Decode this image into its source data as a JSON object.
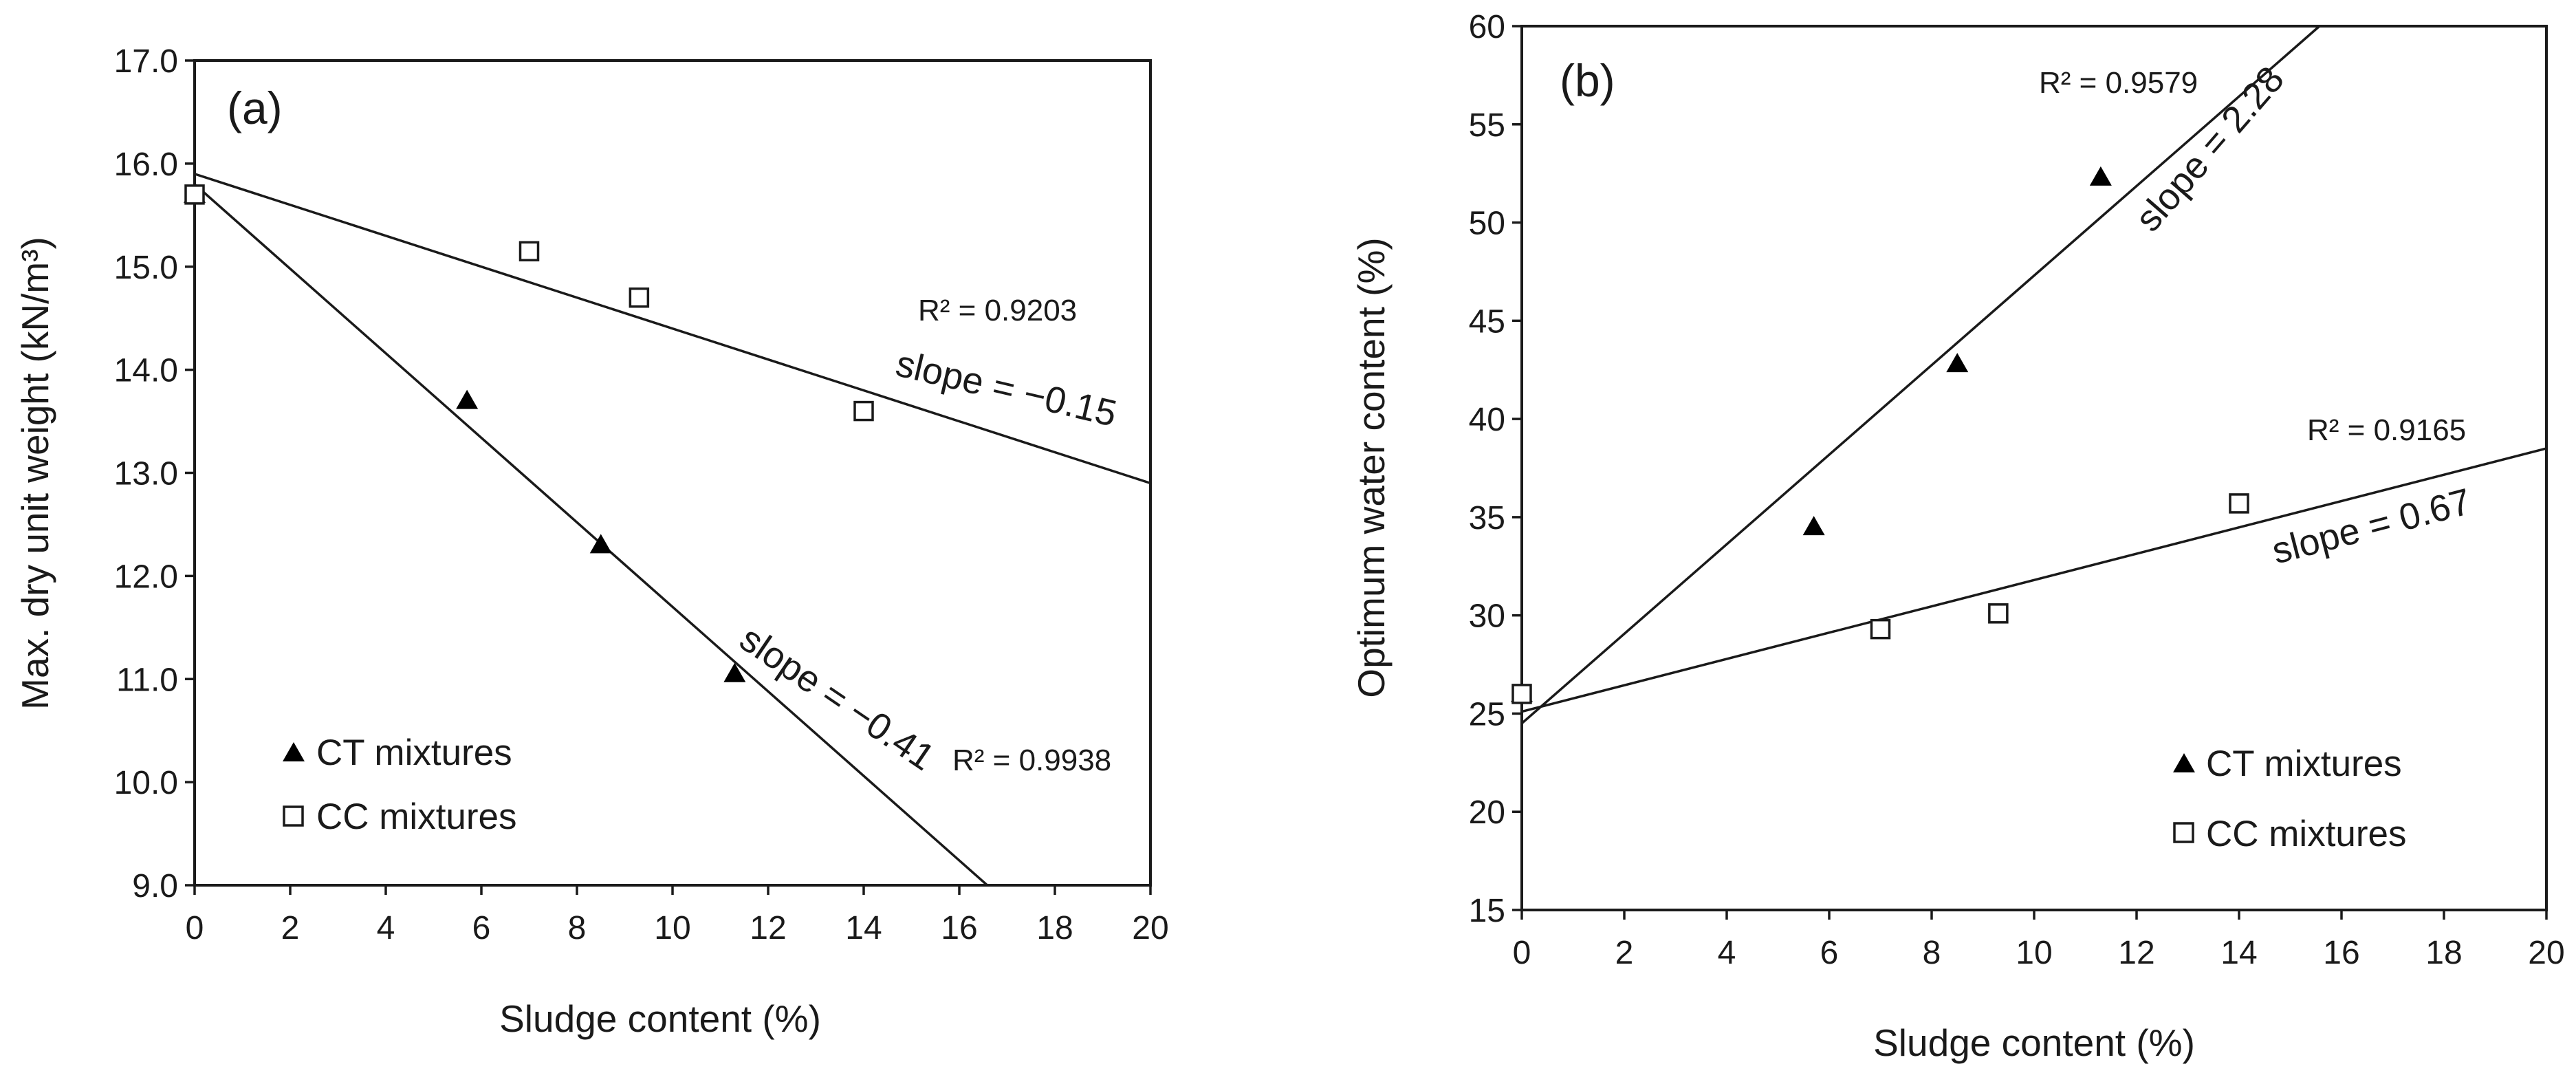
{
  "chart_data": [
    {
      "type": "scatter",
      "panel_label": "(a)",
      "xlabel": "Sludge content (%)",
      "ylabel": "Max. dry unit weight (kN/m³)",
      "xlim": [
        0,
        20
      ],
      "ylim": [
        9.0,
        17.0
      ],
      "xticks": [
        0,
        2,
        4,
        6,
        8,
        10,
        12,
        14,
        16,
        18,
        20
      ],
      "yticks": [
        9.0,
        10.0,
        11.0,
        12.0,
        13.0,
        14.0,
        15.0,
        16.0,
        17.0
      ],
      "y_decimals": 1,
      "series": [
        {
          "name": "CT mixtures",
          "legend_label": "CT mixtures",
          "marker": "triangle",
          "x": [
            0,
            5.7,
            8.5,
            11.3
          ],
          "y": [
            15.7,
            13.7,
            12.3,
            11.05
          ],
          "fit": {
            "intercept": 15.8,
            "slope": -0.41,
            "r2_label": "R² = 0.9938",
            "slope_label": "slope = −0.41"
          }
        },
        {
          "name": "CC mixtures",
          "legend_label": "CC mixtures",
          "marker": "square",
          "x": [
            0,
            7.0,
            9.3,
            14.0
          ],
          "y": [
            15.7,
            15.15,
            14.7,
            13.6
          ],
          "fit": {
            "intercept": 15.9,
            "slope": -0.15,
            "r2_label": "R² = 0.9203",
            "slope_label": "slope = −0.15"
          }
        }
      ]
    },
    {
      "type": "scatter",
      "panel_label": "(b)",
      "xlabel": "Sludge content (%)",
      "ylabel": "Optimum water content (%)",
      "xlim": [
        0,
        20
      ],
      "ylim": [
        15,
        60
      ],
      "xticks": [
        0,
        2,
        4,
        6,
        8,
        10,
        12,
        14,
        16,
        18,
        20
      ],
      "yticks": [
        15,
        20,
        25,
        30,
        35,
        40,
        45,
        50,
        55,
        60
      ],
      "y_decimals": 0,
      "series": [
        {
          "name": "CT mixtures",
          "legend_label": "CT mixtures",
          "marker": "triangle",
          "x": [
            0,
            5.7,
            8.5,
            11.3
          ],
          "y": [
            26,
            34.5,
            42.8,
            52.3
          ],
          "fit": {
            "intercept": 24.5,
            "slope": 2.28,
            "r2_label": "R² = 0.9579",
            "slope_label": "slope = 2.28"
          }
        },
        {
          "name": "CC mixtures",
          "legend_label": "CC mixtures",
          "marker": "square",
          "x": [
            0,
            7.0,
            9.3,
            14.0
          ],
          "y": [
            26,
            29.3,
            30.1,
            35.7
          ],
          "fit": {
            "intercept": 25.1,
            "slope": 0.67,
            "r2_label": "R² = 0.9165",
            "slope_label": "slope = 0.67"
          }
        }
      ]
    }
  ]
}
